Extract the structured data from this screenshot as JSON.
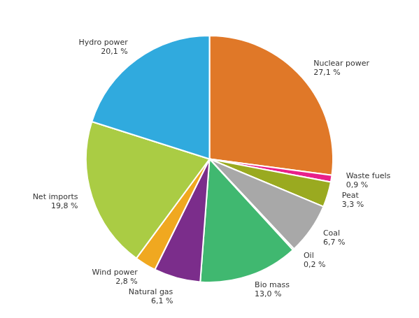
{
  "chart_data": {
    "type": "pie",
    "categories": [
      "Nuclear power",
      "Waste fuels",
      "Peat",
      "Coal",
      "Oil",
      "Bio mass",
      "Natural gas",
      "Wind power",
      "Net imports",
      "Hydro power"
    ],
    "values": [
      27.1,
      0.9,
      3.3,
      6.7,
      0.2,
      13.0,
      6.1,
      2.8,
      19.8,
      20.1
    ],
    "value_labels": [
      "27,1 %",
      "0,9 %",
      "3,3 %",
      "6,7 %",
      "0,2 %",
      "13,0 %",
      "6,1 %",
      "2,8 %",
      "19,8 %",
      "20,1 %"
    ],
    "colors": [
      "#e07828",
      "#e8208a",
      "#9aaa20",
      "#a8a8a8",
      "#60c878",
      "#40b870",
      "#7b2d8b",
      "#f0a820",
      "#aacc44",
      "#30aade"
    ],
    "data_labels": true
  }
}
